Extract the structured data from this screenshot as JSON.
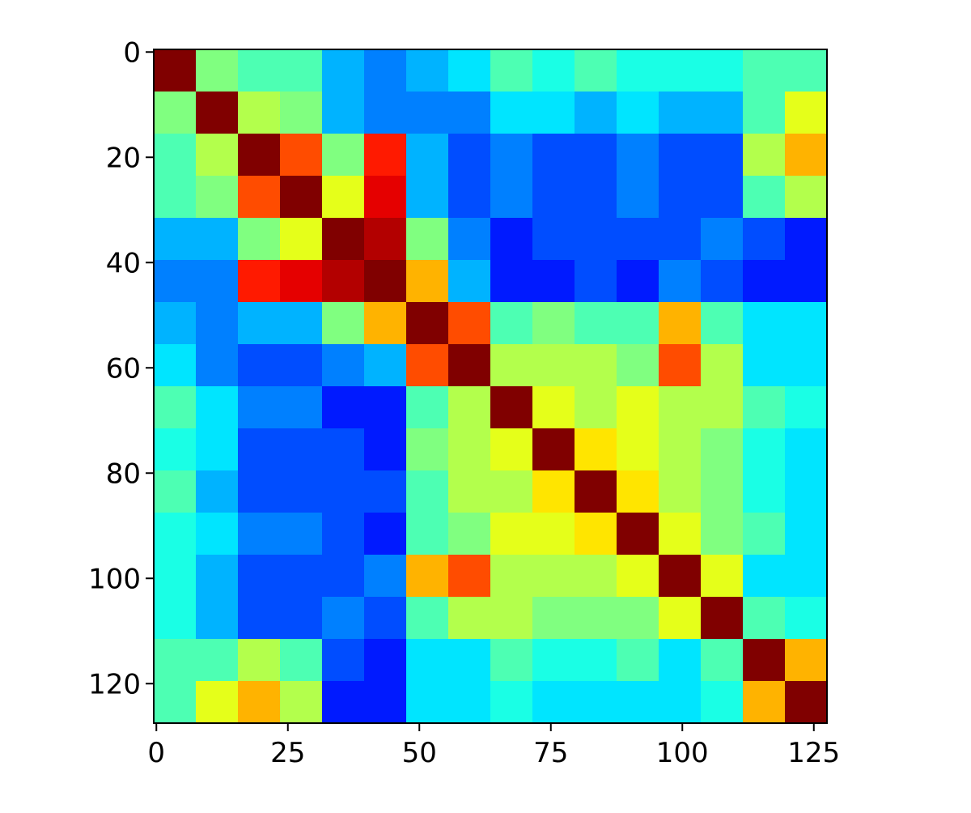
{
  "chart_data": {
    "type": "heatmap",
    "colormap": "jet",
    "x": [
      -0.5,
      7.5,
      15.5,
      23.5,
      31.5,
      39.5,
      47.5,
      55.5,
      63.5,
      71.5,
      79.5,
      87.5,
      95.5,
      103.5,
      111.5,
      119.5,
      127.5
    ],
    "y": [
      -0.5,
      7.5,
      15.5,
      23.5,
      31.5,
      39.5,
      47.5,
      55.5,
      63.5,
      71.5,
      79.5,
      87.5,
      95.5,
      103.5,
      111.5,
      119.5,
      127.5
    ],
    "values": [
      [
        1,
        0.5,
        0.45,
        0.45,
        0.3,
        0.25,
        0.3,
        0.35,
        0.45,
        0.4,
        0.45,
        0.4,
        0.4,
        0.4,
        0.45,
        0.45
      ],
      [
        0.5,
        1,
        0.55,
        0.5,
        0.3,
        0.25,
        0.25,
        0.25,
        0.35,
        0.35,
        0.3,
        0.35,
        0.3,
        0.3,
        0.45,
        0.6
      ],
      [
        0.45,
        0.55,
        1,
        0.8,
        0.5,
        0.85,
        0.3,
        0.2,
        0.25,
        0.2,
        0.2,
        0.25,
        0.2,
        0.2,
        0.55,
        0.7
      ],
      [
        0.45,
        0.5,
        0.8,
        1,
        0.6,
        0.9,
        0.3,
        0.2,
        0.25,
        0.2,
        0.2,
        0.25,
        0.2,
        0.2,
        0.45,
        0.55
      ],
      [
        0.3,
        0.3,
        0.5,
        0.6,
        1,
        0.95,
        0.5,
        0.25,
        0.15,
        0.2,
        0.2,
        0.2,
        0.2,
        0.25,
        0.2,
        0.15
      ],
      [
        0.25,
        0.25,
        0.85,
        0.9,
        0.95,
        1,
        0.7,
        0.3,
        0.15,
        0.15,
        0.2,
        0.15,
        0.25,
        0.2,
        0.15,
        0.15
      ],
      [
        0.3,
        0.25,
        0.3,
        0.3,
        0.5,
        0.7,
        1,
        0.8,
        0.45,
        0.5,
        0.45,
        0.45,
        0.7,
        0.45,
        0.35,
        0.35
      ],
      [
        0.35,
        0.25,
        0.2,
        0.2,
        0.25,
        0.3,
        0.8,
        1,
        0.55,
        0.55,
        0.55,
        0.5,
        0.8,
        0.55,
        0.35,
        0.35
      ],
      [
        0.45,
        0.35,
        0.25,
        0.25,
        0.15,
        0.15,
        0.45,
        0.55,
        1,
        0.6,
        0.55,
        0.6,
        0.55,
        0.55,
        0.45,
        0.4
      ],
      [
        0.4,
        0.35,
        0.2,
        0.2,
        0.2,
        0.15,
        0.5,
        0.55,
        0.6,
        1,
        0.65,
        0.6,
        0.55,
        0.5,
        0.4,
        0.35
      ],
      [
        0.45,
        0.3,
        0.2,
        0.2,
        0.2,
        0.2,
        0.45,
        0.55,
        0.55,
        0.65,
        1,
        0.65,
        0.55,
        0.5,
        0.4,
        0.35
      ],
      [
        0.4,
        0.35,
        0.25,
        0.25,
        0.2,
        0.15,
        0.45,
        0.5,
        0.6,
        0.6,
        0.65,
        1,
        0.6,
        0.5,
        0.45,
        0.35
      ],
      [
        0.4,
        0.3,
        0.2,
        0.2,
        0.2,
        0.25,
        0.7,
        0.8,
        0.55,
        0.55,
        0.55,
        0.6,
        1,
        0.6,
        0.35,
        0.35
      ],
      [
        0.4,
        0.3,
        0.2,
        0.2,
        0.25,
        0.2,
        0.45,
        0.55,
        0.55,
        0.5,
        0.5,
        0.5,
        0.6,
        1,
        0.45,
        0.4
      ],
      [
        0.45,
        0.45,
        0.55,
        0.45,
        0.2,
        0.15,
        0.35,
        0.35,
        0.45,
        0.4,
        0.4,
        0.45,
        0.35,
        0.45,
        1,
        0.7
      ],
      [
        0.45,
        0.6,
        0.7,
        0.55,
        0.15,
        0.15,
        0.35,
        0.35,
        0.4,
        0.35,
        0.35,
        0.35,
        0.35,
        0.4,
        0.7,
        1
      ]
    ],
    "xlim": [
      -0.5,
      127.5
    ],
    "ylim": [
      127.5,
      -0.5
    ],
    "xticks": [
      0,
      25,
      50,
      75,
      100,
      125
    ],
    "yticks": [
      0,
      20,
      40,
      60,
      80,
      100,
      120
    ]
  }
}
